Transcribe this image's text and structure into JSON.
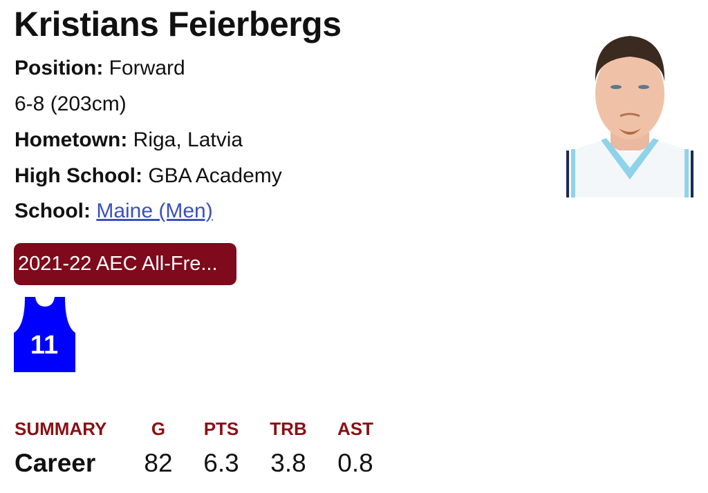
{
  "player": {
    "name": "Kristians Feierbergs",
    "position_label": "Position:",
    "position": "Forward",
    "height": "6-8 (203cm)",
    "hometown_label": "Hometown:",
    "hometown": "Riga, Latvia",
    "high_school_label": "High School:",
    "high_school": "GBA Academy",
    "school_label": "School:",
    "school": "Maine (Men)",
    "jersey_number": "11",
    "jersey_color": "#0000ff"
  },
  "award_badge": {
    "label": "2021-22 AEC All-Fre...",
    "color": "#7e0a1b"
  },
  "summary": {
    "headers": [
      "SUMMARY",
      "G",
      "PTS",
      "TRB",
      "AST"
    ],
    "rows": [
      {
        "label": "Career",
        "values": [
          "82",
          "6.3",
          "3.8",
          "0.8"
        ]
      }
    ]
  }
}
